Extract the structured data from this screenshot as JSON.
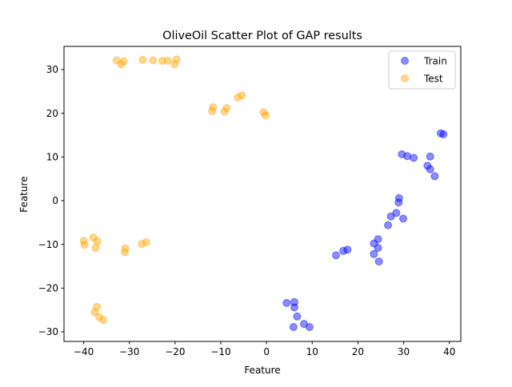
{
  "chart_data": {
    "type": "scatter",
    "title": "OliveOil Scatter Plot of GAP results",
    "xlabel": "Feature",
    "ylabel": "Feature",
    "xlim": [
      -44.3,
      42.5
    ],
    "ylim": [
      -32.2,
      35.3
    ],
    "xticks": [
      -40,
      -30,
      -20,
      -10,
      0,
      10,
      20,
      30,
      40
    ],
    "yticks": [
      -30,
      -20,
      -10,
      0,
      10,
      20,
      30
    ],
    "grid": false,
    "legend_position": "top-right",
    "series": [
      {
        "name": "Train",
        "color": "#0000ff",
        "points": [
          [
            38.1,
            15.4
          ],
          [
            38.7,
            15.2
          ],
          [
            29.6,
            10.6
          ],
          [
            30.8,
            10.2
          ],
          [
            32.2,
            9.8
          ],
          [
            35.8,
            10.1
          ],
          [
            35.2,
            8.0
          ],
          [
            35.8,
            7.2
          ],
          [
            36.8,
            5.6
          ],
          [
            29.0,
            0.6
          ],
          [
            28.9,
            -0.4
          ],
          [
            28.4,
            -2.8
          ],
          [
            27.2,
            -3.6
          ],
          [
            26.6,
            -5.6
          ],
          [
            29.9,
            -4.1
          ],
          [
            24.4,
            -8.8
          ],
          [
            23.5,
            -9.8
          ],
          [
            24.4,
            -10.8
          ],
          [
            23.5,
            -12.2
          ],
          [
            24.6,
            -13.9
          ],
          [
            17.7,
            -11.2
          ],
          [
            16.8,
            -11.5
          ],
          [
            15.2,
            -12.5
          ],
          [
            4.4,
            -23.4
          ],
          [
            6.1,
            -23.2
          ],
          [
            6.1,
            -24.4
          ],
          [
            6.7,
            -26.5
          ],
          [
            8.2,
            -28.2
          ],
          [
            9.4,
            -28.9
          ],
          [
            5.9,
            -28.9
          ]
        ]
      },
      {
        "name": "Test",
        "color": "#ffa500",
        "points": [
          [
            -32.8,
            32.1
          ],
          [
            -31.2,
            31.9
          ],
          [
            -31.8,
            31.2
          ],
          [
            -27.1,
            32.2
          ],
          [
            -24.8,
            32.1
          ],
          [
            -22.8,
            32.0
          ],
          [
            -21.6,
            32.0
          ],
          [
            -19.7,
            32.3
          ],
          [
            -20.1,
            31.2
          ],
          [
            -11.7,
            21.4
          ],
          [
            -11.9,
            20.5
          ],
          [
            -8.7,
            21.2
          ],
          [
            -9.2,
            20.4
          ],
          [
            -5.4,
            24.1
          ],
          [
            -6.3,
            23.6
          ],
          [
            -0.6,
            20.2
          ],
          [
            -0.2,
            19.5
          ],
          [
            -40.0,
            -9.2
          ],
          [
            -39.8,
            -10.1
          ],
          [
            -37.9,
            -8.4
          ],
          [
            -37.0,
            -9.3
          ],
          [
            -37.4,
            -10.8
          ],
          [
            -30.9,
            -10.9
          ],
          [
            -31.0,
            -11.8
          ],
          [
            -27.3,
            -9.9
          ],
          [
            -26.3,
            -9.5
          ],
          [
            -37.1,
            -24.3
          ],
          [
            -37.6,
            -25.5
          ],
          [
            -36.6,
            -26.6
          ],
          [
            -35.7,
            -27.3
          ]
        ]
      }
    ]
  }
}
